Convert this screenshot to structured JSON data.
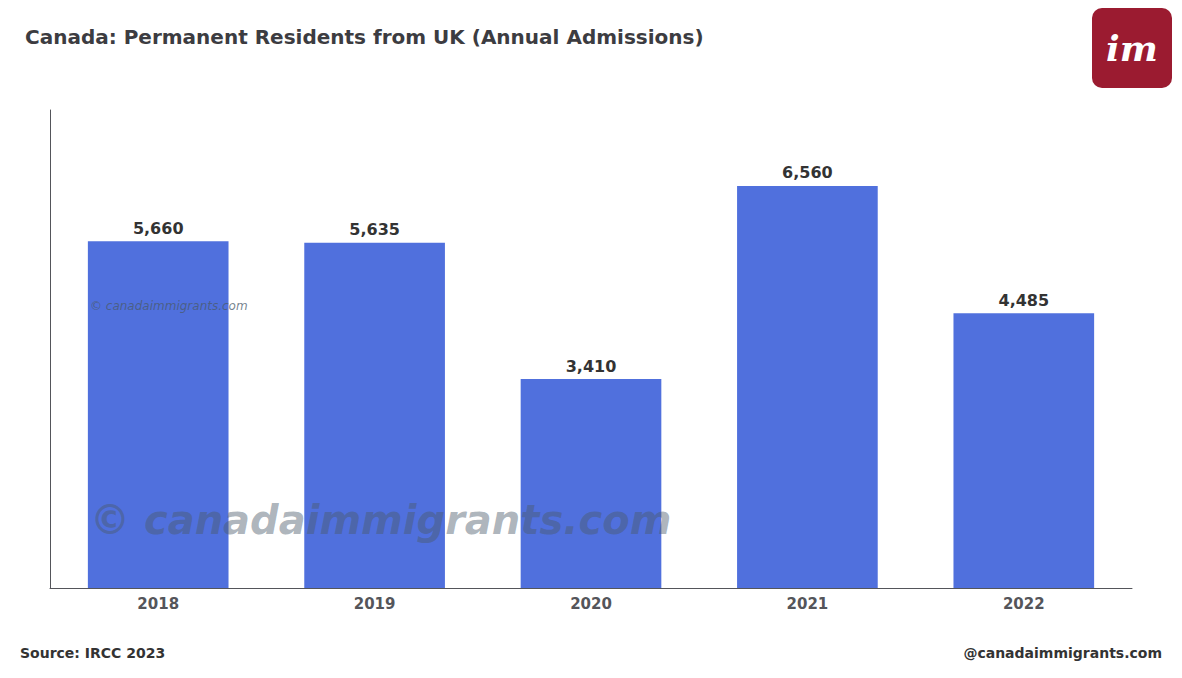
{
  "chart_data": {
    "type": "bar",
    "title": "Canada: Permanent Residents from UK (Annual Admissions)",
    "categories": [
      "2018",
      "2019",
      "2020",
      "2021",
      "2022"
    ],
    "values": [
      5660,
      5635,
      3410,
      6560,
      4485
    ],
    "value_labels": [
      "5,660",
      "5,635",
      "3,410",
      "6,560",
      "4,485"
    ],
    "data_labels": true,
    "ylim": [
      0,
      7800
    ],
    "tick_labels": "x",
    "grid": false,
    "annotations": [
      "Source: IRCC 2023",
      "@canadaimmigrants.com",
      "© canadaimmigrants.com",
      "© canadaimmigrants.com",
      "im"
    ]
  }
}
